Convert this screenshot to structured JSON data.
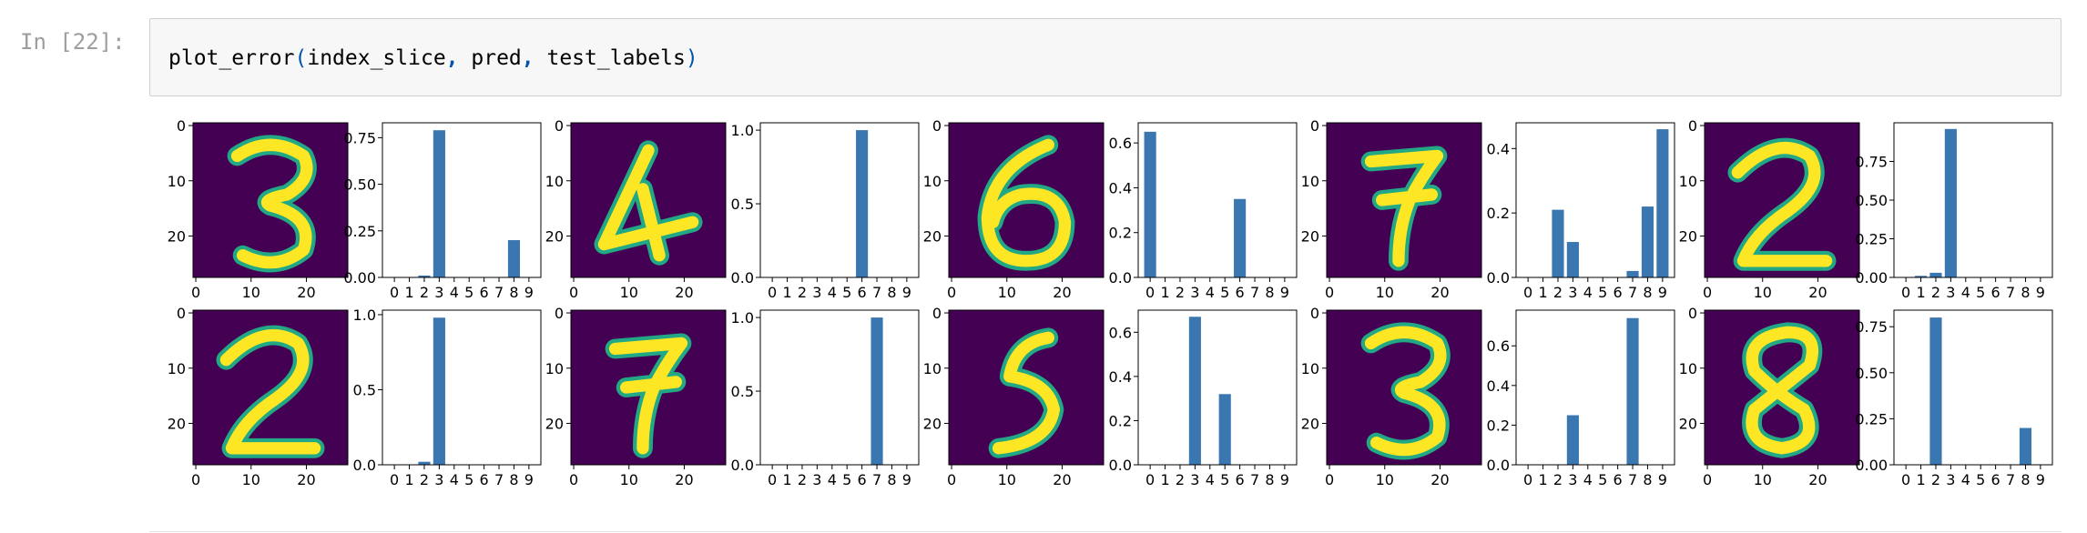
{
  "cell": {
    "prompt": "In [22]:",
    "code": {
      "fn": "plot_error",
      "open": "(",
      "arg1": "index_slice",
      "comma1": ",",
      "arg2": " pred",
      "comma2": ",",
      "arg3": " test_labels",
      "close": ")"
    }
  },
  "colors": {
    "bar": "#3a76af",
    "image_bg": "#440154",
    "digit_stroke": "#fde725",
    "digit_edge": "#22a884"
  },
  "chart_data": {
    "type": "bar",
    "description_layout": "2 rows x 5 pairs; each pair = digit image (28x28, axes ticks 0,10,20) + probability bar chart over classes 0-9",
    "image_axes": {
      "x_ticks": [
        "0",
        "10",
        "20"
      ],
      "y_ticks": [
        "0",
        "10",
        "20"
      ],
      "range": [
        0,
        27
      ]
    },
    "categories": [
      "0",
      "1",
      "2",
      "3",
      "4",
      "5",
      "6",
      "7",
      "8",
      "9"
    ],
    "panels": [
      {
        "row": 0,
        "col": 0,
        "digit_shown": "3",
        "values": [
          0,
          0,
          0.01,
          0.79,
          0,
          0,
          0,
          0,
          0.2,
          0
        ],
        "ylim": [
          0,
          0.83
        ],
        "yticks": [
          0,
          0.25,
          0.5,
          0.75
        ],
        "ytick_labels": [
          "0.00",
          "0.25",
          "0.50",
          "0.75"
        ]
      },
      {
        "row": 0,
        "col": 1,
        "digit_shown": "4",
        "values": [
          0,
          0,
          0,
          0,
          0,
          0,
          1.0,
          0,
          0,
          0
        ],
        "ylim": [
          0,
          1.05
        ],
        "yticks": [
          0,
          0.5,
          1.0
        ],
        "ytick_labels": [
          "0.0",
          "0.5",
          "1.0"
        ]
      },
      {
        "row": 0,
        "col": 2,
        "digit_shown": "6",
        "values": [
          0.65,
          0,
          0,
          0,
          0,
          0,
          0.35,
          0,
          0,
          0
        ],
        "ylim": [
          0,
          0.69
        ],
        "yticks": [
          0,
          0.2,
          0.4,
          0.6
        ],
        "ytick_labels": [
          "0.0",
          "0.2",
          "0.4",
          "0.6"
        ]
      },
      {
        "row": 0,
        "col": 3,
        "digit_shown": "7",
        "values": [
          0,
          0,
          0.21,
          0.11,
          0,
          0,
          0,
          0.02,
          0.22,
          0.46
        ],
        "ylim": [
          0,
          0.48
        ],
        "yticks": [
          0,
          0.2,
          0.4
        ],
        "ytick_labels": [
          "0.0",
          "0.2",
          "0.4"
        ]
      },
      {
        "row": 0,
        "col": 4,
        "digit_shown": "2",
        "values": [
          0,
          0.01,
          0.03,
          0.96,
          0,
          0,
          0,
          0,
          0,
          0
        ],
        "ylim": [
          0,
          1.0
        ],
        "yticks": [
          0,
          0.25,
          0.5,
          0.75
        ],
        "ytick_labels": [
          "0.00",
          "0.25",
          "0.50",
          "0.75"
        ]
      },
      {
        "row": 1,
        "col": 0,
        "digit_shown": "2",
        "values": [
          0,
          0,
          0.02,
          0.98,
          0,
          0,
          0,
          0,
          0,
          0
        ],
        "ylim": [
          0,
          1.03
        ],
        "yticks": [
          0,
          0.5,
          1.0
        ],
        "ytick_labels": [
          "0.0",
          "0.5",
          "1.0"
        ]
      },
      {
        "row": 1,
        "col": 1,
        "digit_shown": "7",
        "values": [
          0,
          0,
          0,
          0,
          0,
          0,
          0,
          1.0,
          0,
          0
        ],
        "ylim": [
          0,
          1.05
        ],
        "yticks": [
          0,
          0.5,
          1.0
        ],
        "ytick_labels": [
          "0.0",
          "0.5",
          "1.0"
        ]
      },
      {
        "row": 1,
        "col": 2,
        "digit_shown": "5",
        "values": [
          0,
          0,
          0,
          0.67,
          0,
          0.32,
          0,
          0,
          0,
          0
        ],
        "ylim": [
          0,
          0.7
        ],
        "yticks": [
          0,
          0.2,
          0.4,
          0.6
        ],
        "ytick_labels": [
          "0.0",
          "0.2",
          "0.4",
          "0.6"
        ]
      },
      {
        "row": 1,
        "col": 3,
        "digit_shown": "3",
        "values": [
          0,
          0,
          0,
          0.25,
          0,
          0,
          0,
          0.74,
          0,
          0
        ],
        "ylim": [
          0,
          0.78
        ],
        "yticks": [
          0,
          0.2,
          0.4,
          0.6
        ],
        "ytick_labels": [
          "0.0",
          "0.2",
          "0.4",
          "0.6"
        ]
      },
      {
        "row": 1,
        "col": 4,
        "digit_shown": "8",
        "values": [
          0,
          0,
          0.8,
          0,
          0,
          0,
          0,
          0,
          0.2,
          0
        ],
        "ylim": [
          0,
          0.84
        ],
        "yticks": [
          0,
          0.25,
          0.5,
          0.75
        ],
        "ytick_labels": [
          "0.00",
          "0.25",
          "0.50",
          "0.75"
        ]
      }
    ]
  }
}
